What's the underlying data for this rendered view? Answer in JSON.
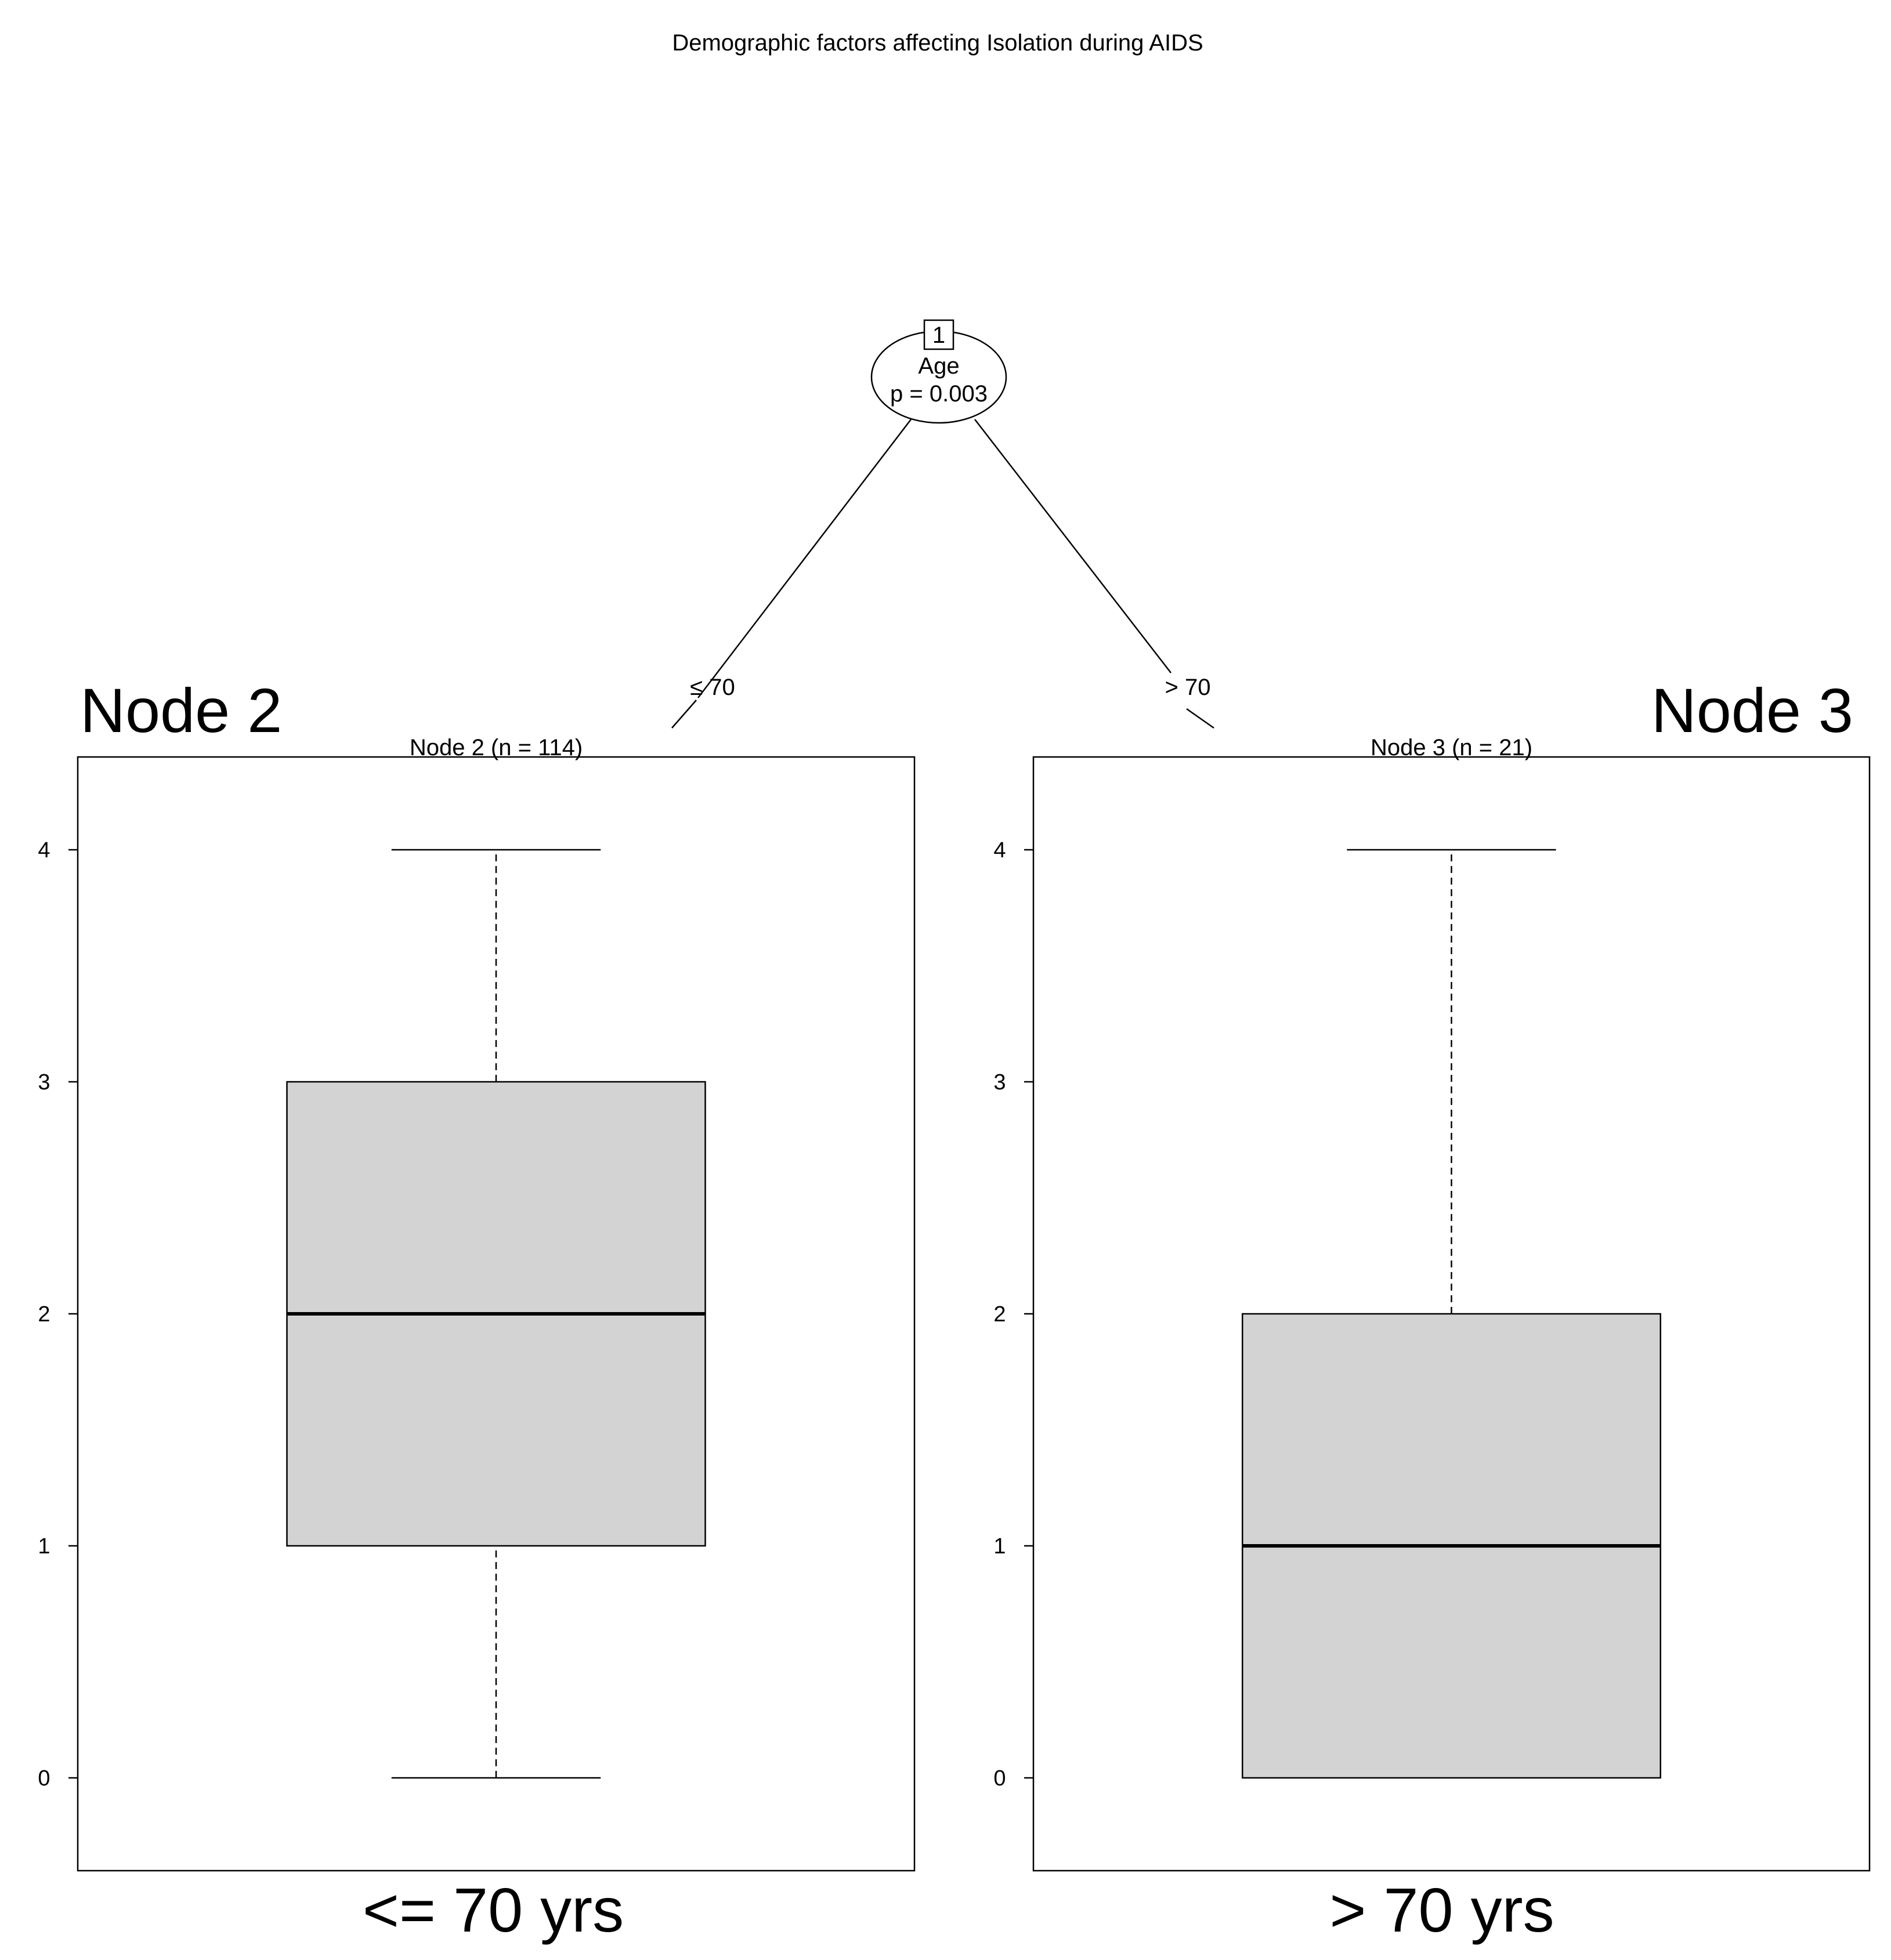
{
  "title": "Demographic factors affecting Isolation during AIDS",
  "root_node": {
    "id": "1",
    "variable": "Age",
    "pvalue": "p = 0.003"
  },
  "edges": [
    {
      "label": "≤ 70"
    },
    {
      "label": "> 70"
    }
  ],
  "annotations": {
    "left_heading": "Node 2",
    "right_heading": "Node 3",
    "left_footer": "<= 70 yrs",
    "right_footer": "> 70 yrs"
  },
  "chart_data": {
    "type": "boxplot",
    "title": "Demographic factors affecting Isolation during AIDS",
    "ylim": [
      -0.4,
      4.4
    ],
    "yticks": [
      0,
      1,
      2,
      3,
      4
    ],
    "panels": [
      {
        "title": "Node 2 (n = 114)",
        "whisker_low": 0,
        "q1": 1,
        "median": 2,
        "q3": 3,
        "whisker_high": 4
      },
      {
        "title": "Node 3 (n = 21)",
        "whisker_low": 0,
        "q1": 0,
        "median": 1,
        "q3": 2,
        "whisker_high": 4
      }
    ],
    "colors": {
      "box_fill": "#d3d3d3",
      "stroke": "#000000"
    }
  }
}
